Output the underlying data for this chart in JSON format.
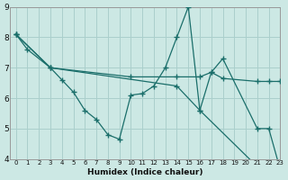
{
  "xlabel": "Humidex (Indice chaleur)",
  "background_color": "#cce8e4",
  "grid_color": "#aacfcc",
  "line_color": "#1a6e6a",
  "xlim": [
    -0.5,
    23
  ],
  "ylim": [
    4,
    9
  ],
  "xticks": [
    0,
    1,
    2,
    3,
    4,
    5,
    6,
    7,
    8,
    9,
    10,
    11,
    12,
    13,
    14,
    15,
    16,
    17,
    18,
    19,
    20,
    21,
    22,
    23
  ],
  "yticks": [
    4,
    5,
    6,
    7,
    8,
    9
  ],
  "series": [
    {
      "x": [
        0,
        1,
        3,
        4,
        5,
        6,
        7,
        8,
        9,
        10,
        11,
        12,
        13,
        14,
        15,
        16,
        17,
        18,
        21,
        22,
        23
      ],
      "y": [
        8.1,
        7.6,
        7.0,
        6.6,
        6.2,
        5.6,
        5.3,
        4.8,
        4.65,
        6.1,
        6.15,
        6.4,
        7.0,
        8.0,
        9.0,
        5.6,
        6.85,
        7.3,
        5.0,
        5.0,
        3.65
      ]
    },
    {
      "x": [
        0,
        3,
        10,
        14,
        16,
        17,
        18,
        21,
        22,
        23
      ],
      "y": [
        8.1,
        7.0,
        6.7,
        6.7,
        6.7,
        6.85,
        6.65,
        6.55,
        6.55,
        6.55
      ]
    },
    {
      "x": [
        0,
        3,
        14,
        16,
        21,
        23
      ],
      "y": [
        8.1,
        7.0,
        6.4,
        5.6,
        3.75,
        3.65
      ]
    }
  ]
}
